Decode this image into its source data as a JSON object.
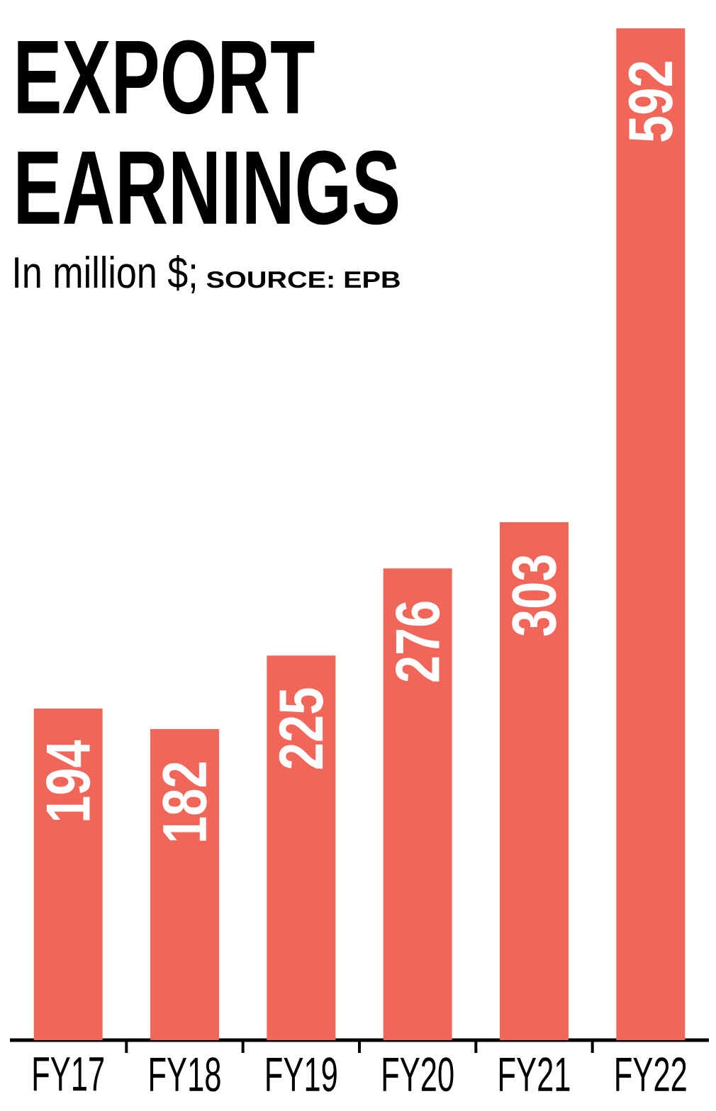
{
  "chart_data": {
    "type": "bar",
    "title": "EXPORT EARNINGS",
    "subtitle": "In million $;",
    "annotations": [
      "SOURCE: EPB"
    ],
    "categories": [
      "FY17",
      "FY18",
      "FY19",
      "FY20",
      "FY21",
      "FY22"
    ],
    "values": [
      194,
      182,
      225,
      276,
      303,
      592
    ],
    "color": "#f2665a",
    "data_labels": true
  }
}
